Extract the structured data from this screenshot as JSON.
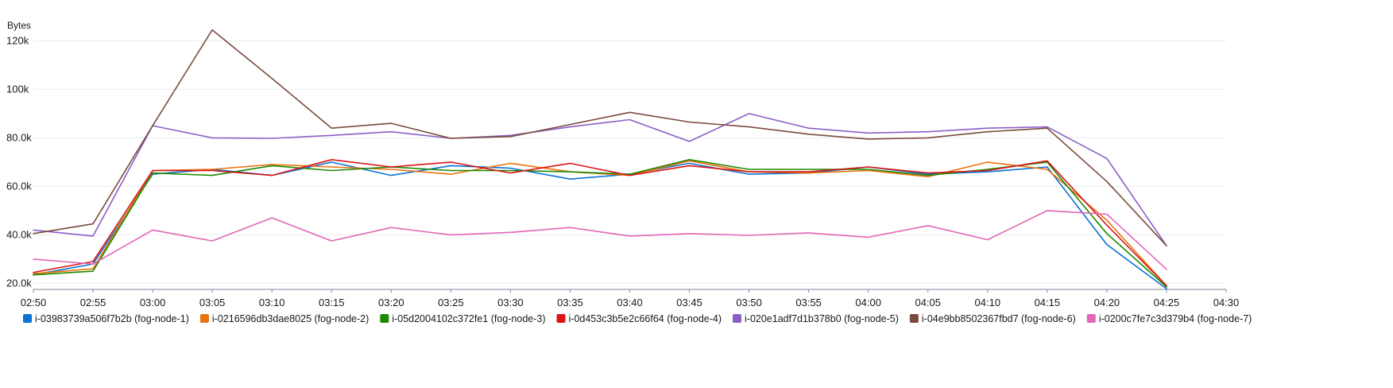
{
  "chart_data": {
    "type": "line",
    "unit_label": "Bytes",
    "x": [
      "02:50",
      "02:55",
      "03:00",
      "03:05",
      "03:10",
      "03:15",
      "03:20",
      "03:25",
      "03:30",
      "03:35",
      "03:40",
      "03:45",
      "03:50",
      "03:55",
      "04:00",
      "04:05",
      "04:10",
      "04:15",
      "04:20",
      "04:25"
    ],
    "x_ticks": [
      "02:50",
      "02:55",
      "03:00",
      "03:05",
      "03:10",
      "03:15",
      "03:20",
      "03:25",
      "03:30",
      "03:35",
      "03:40",
      "03:45",
      "03:50",
      "03:55",
      "04:00",
      "04:05",
      "04:10",
      "04:15",
      "04:20",
      "04:25",
      "04:30"
    ],
    "y_ticks": [
      {
        "value": 20000,
        "label": "20.0k"
      },
      {
        "value": 40000,
        "label": "40.0k"
      },
      {
        "value": 60000,
        "label": "60.0k"
      },
      {
        "value": 80000,
        "label": "80.0k"
      },
      {
        "value": 100000,
        "label": "100k"
      },
      {
        "value": 120000,
        "label": "120k"
      }
    ],
    "ylim": [
      17500,
      127000
    ],
    "grid": true,
    "legend_position": "bottom",
    "series": [
      {
        "name": "i-03983739a506f7b2b (fog-node-1)",
        "color": "#0972d3",
        "values": [
          23500,
          28000,
          65000,
          67000,
          64500,
          70000,
          64500,
          68500,
          67500,
          63000,
          65000,
          69500,
          65000,
          65500,
          68000,
          65000,
          66000,
          68000,
          36000,
          17800
        ]
      },
      {
        "name": "i-0216596db3dae8025 (fog-node-2)",
        "color": "#ec7211",
        "values": [
          24000,
          26000,
          66500,
          67000,
          69000,
          68000,
          67000,
          65000,
          69500,
          66000,
          64500,
          70500,
          66000,
          65500,
          66500,
          64000,
          70000,
          67000,
          46000,
          19000
        ]
      },
      {
        "name": "i-05d2004102c372fe1 (fog-node-3)",
        "color": "#1e8900",
        "values": [
          23500,
          25000,
          65500,
          64500,
          68500,
          66500,
          68000,
          66500,
          66500,
          66000,
          65000,
          71000,
          67000,
          67000,
          67000,
          64500,
          67000,
          70000,
          40500,
          18500
        ]
      },
      {
        "name": "i-0d453c3b5e2c66f64 (fog-node-4)",
        "color": "#d91515",
        "values": [
          24500,
          29000,
          66500,
          66500,
          64500,
          71000,
          68000,
          70000,
          65500,
          69500,
          64500,
          68500,
          66000,
          66000,
          68000,
          65500,
          66500,
          70500,
          44000,
          19000
        ]
      },
      {
        "name": "i-020e1adf7d1b378b0 (fog-node-5)",
        "color": "#8a5fc6",
        "values": [
          42000,
          39500,
          85000,
          80000,
          79800,
          81000,
          82500,
          79800,
          81000,
          84500,
          87500,
          78500,
          90000,
          84000,
          82000,
          82500,
          84000,
          84500,
          71500,
          35500
        ]
      },
      {
        "name": "i-04e9bb8502367fbd7 (fog-node-6)",
        "color": "#7a4b3c",
        "values": [
          40500,
          44500,
          85000,
          124500,
          104500,
          84000,
          86000,
          79800,
          80500,
          85500,
          90500,
          86500,
          84500,
          81500,
          79500,
          80000,
          82500,
          84000,
          62000,
          35500
        ]
      },
      {
        "name": "i-0200c7fe7c3d379b4 (fog-node-7)",
        "color": "#e366b8",
        "values": [
          30000,
          28000,
          42000,
          37500,
          47000,
          37500,
          43000,
          40000,
          41000,
          43000,
          39500,
          40500,
          39800,
          40800,
          39000,
          43800,
          38000,
          50000,
          48500,
          25800
        ]
      }
    ]
  }
}
